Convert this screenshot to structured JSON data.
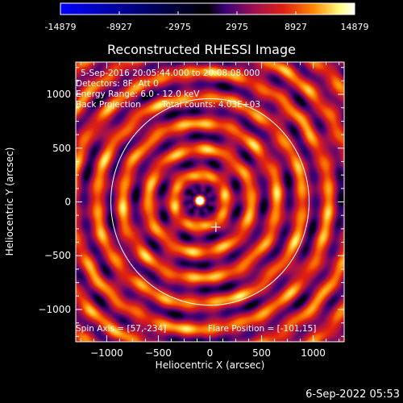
{
  "chart_data": {
    "type": "heatmap",
    "title": "Reconstructed RHESSI Image",
    "xlabel": "Heliocentric X (arcsec)",
    "ylabel": "Heliocentric Y (arcsec)",
    "xlim": [
      -1300,
      1300
    ],
    "ylim": [
      -1300,
      1300
    ],
    "xticks": [
      -1000,
      -500,
      0,
      500,
      1000
    ],
    "yticks": [
      -1000,
      -500,
      0,
      500,
      1000
    ],
    "colorbar": {
      "min": -14879,
      "max": 14879,
      "tick_labels": [
        "-14879",
        "-8927",
        "-2975",
        "2975",
        "8927",
        "14879"
      ],
      "tick_values": [
        -14879,
        -8927,
        -2975,
        2975,
        8927,
        14879
      ],
      "colormap_stops": [
        "#0000ff",
        "#000000",
        "#3a0078",
        "#a01050",
        "#e02010",
        "#ff8800",
        "#ffff80",
        "#ffffff"
      ]
    },
    "source_peak": {
      "x": -101,
      "y": 15
    },
    "disk_center_marker": {
      "x": 57,
      "y": -234
    },
    "solar_disk_radius_arcsec": 960,
    "grid": false
  },
  "annotations": {
    "time_range": "5-Sep-2016 20:05:44.000 to 20:08:08.000",
    "detectors": "Detectors: 8F, Att 0",
    "energy": "Energy Range: 6.0 - 12.0 keV",
    "method": "Back Projection",
    "counts": "Total counts: 4.03E+03",
    "spin_axis": "Spin Axis = [57,-234]",
    "flare_position": "Flare Position = [-101,15]"
  },
  "footer": {
    "date": "6-Sep-2022 05:53"
  }
}
